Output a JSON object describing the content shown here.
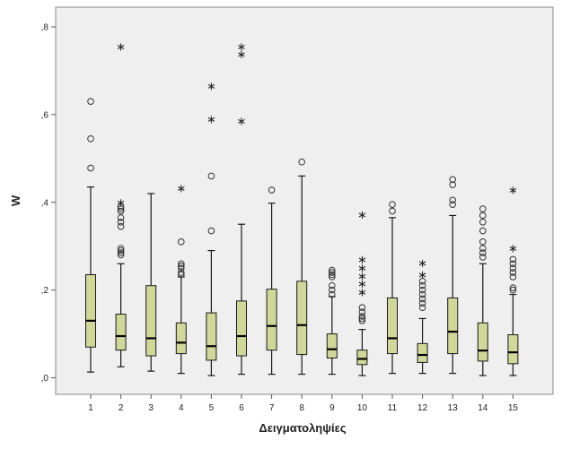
{
  "chart_data": {
    "type": "boxplot",
    "xlabel": "Δειγματοληψίες",
    "ylabel": "W",
    "ylim": [
      0,
      0.82
    ],
    "y_ticks": [
      {
        "value": 0.0,
        "label": ",0"
      },
      {
        "value": 0.2,
        "label": ",2"
      },
      {
        "value": 0.4,
        "label": ",4"
      },
      {
        "value": 0.6,
        "label": ",6"
      },
      {
        "value": 0.8,
        "label": ",8"
      }
    ],
    "categories": [
      "1",
      "2",
      "3",
      "4",
      "5",
      "6",
      "7",
      "8",
      "9",
      "10",
      "11",
      "12",
      "13",
      "14",
      "15"
    ],
    "boxes": [
      {
        "min": 0.013,
        "q1": 0.07,
        "median": 0.13,
        "q3": 0.235,
        "max": 0.435,
        "outliers": [
          0.478,
          0.545,
          0.63
        ],
        "extremes": []
      },
      {
        "min": 0.025,
        "q1": 0.063,
        "median": 0.095,
        "q3": 0.145,
        "max": 0.26,
        "outliers": [
          0.28,
          0.285,
          0.29,
          0.295,
          0.345,
          0.355,
          0.365,
          0.38,
          0.385,
          0.39
        ],
        "extremes": [
          0.4,
          0.755
        ]
      },
      {
        "min": 0.015,
        "q1": 0.05,
        "median": 0.09,
        "q3": 0.21,
        "max": 0.42,
        "outliers": [],
        "extremes": []
      },
      {
        "min": 0.01,
        "q1": 0.055,
        "median": 0.08,
        "q3": 0.125,
        "max": 0.23,
        "outliers": [
          0.235,
          0.24,
          0.25,
          0.255,
          0.26,
          0.31
        ],
        "extremes": [
          0.432
        ]
      },
      {
        "min": 0.005,
        "q1": 0.04,
        "median": 0.072,
        "q3": 0.148,
        "max": 0.29,
        "outliers": [
          0.335,
          0.46
        ],
        "extremes": [
          0.59,
          0.665
        ]
      },
      {
        "min": 0.008,
        "q1": 0.05,
        "median": 0.095,
        "q3": 0.175,
        "max": 0.35,
        "outliers": [],
        "extremes": [
          0.585,
          0.738,
          0.755
        ]
      },
      {
        "min": 0.008,
        "q1": 0.063,
        "median": 0.118,
        "q3": 0.202,
        "max": 0.398,
        "outliers": [
          0.428
        ],
        "extremes": []
      },
      {
        "min": 0.008,
        "q1": 0.053,
        "median": 0.12,
        "q3": 0.22,
        "max": 0.46,
        "outliers": [
          0.492
        ],
        "extremes": []
      },
      {
        "min": 0.008,
        "q1": 0.045,
        "median": 0.065,
        "q3": 0.1,
        "max": 0.185,
        "outliers": [
          0.19,
          0.2,
          0.21,
          0.23,
          0.235,
          0.24,
          0.245
        ],
        "extremes": []
      },
      {
        "min": 0.005,
        "q1": 0.03,
        "median": 0.043,
        "q3": 0.063,
        "max": 0.11,
        "outliers": [
          0.13,
          0.135,
          0.14,
          0.15,
          0.16
        ],
        "extremes": [
          0.195,
          0.215,
          0.232,
          0.25,
          0.27,
          0.372
        ]
      },
      {
        "min": 0.01,
        "q1": 0.055,
        "median": 0.09,
        "q3": 0.182,
        "max": 0.365,
        "outliers": [
          0.38,
          0.395
        ],
        "extremes": []
      },
      {
        "min": 0.01,
        "q1": 0.035,
        "median": 0.052,
        "q3": 0.078,
        "max": 0.135,
        "outliers": [
          0.16,
          0.17,
          0.18,
          0.19,
          0.2,
          0.21,
          0.22
        ],
        "extremes": [
          0.235,
          0.262
        ]
      },
      {
        "min": 0.01,
        "q1": 0.055,
        "median": 0.105,
        "q3": 0.182,
        "max": 0.37,
        "outliers": [
          0.395,
          0.405,
          0.44,
          0.452
        ],
        "extremes": []
      },
      {
        "min": 0.005,
        "q1": 0.038,
        "median": 0.062,
        "q3": 0.125,
        "max": 0.26,
        "outliers": [
          0.275,
          0.285,
          0.295,
          0.31,
          0.335,
          0.355,
          0.37,
          0.385
        ],
        "extremes": []
      },
      {
        "min": 0.005,
        "q1": 0.032,
        "median": 0.058,
        "q3": 0.098,
        "max": 0.19,
        "outliers": [
          0.2,
          0.205,
          0.23,
          0.24,
          0.25,
          0.26,
          0.27
        ],
        "extremes": [
          0.295,
          0.428
        ]
      }
    ],
    "colors": {
      "box_fill": "#cfd89a",
      "box_stroke": "#1a1a1a",
      "plot_background": "#efefef",
      "plot_border": "#8a8a8a"
    },
    "grid": false
  }
}
